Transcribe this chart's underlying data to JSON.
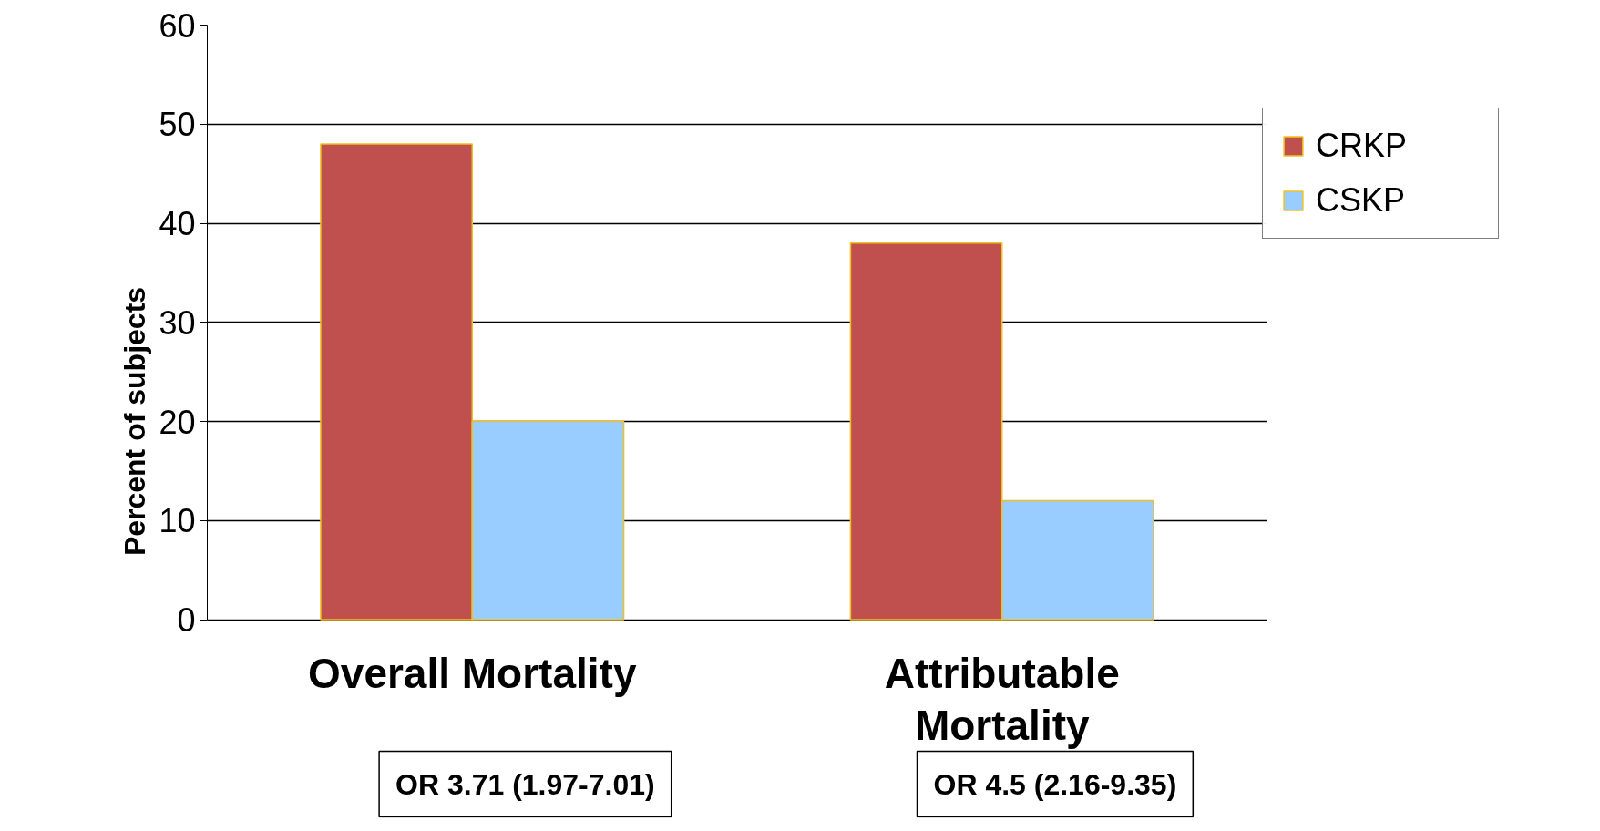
{
  "chart_data": {
    "type": "bar",
    "ylabel": "Percent of subjects",
    "categories": [
      "Overall Mortality",
      "Attributable Mortality"
    ],
    "series": [
      {
        "name": "CRKP",
        "color": "#c0504d",
        "values": [
          48,
          38
        ]
      },
      {
        "name": "CSKP",
        "color": "#99ccff",
        "values": [
          20,
          12
        ]
      }
    ],
    "ylim": [
      0,
      60
    ],
    "yticks": [
      0,
      10,
      20,
      30,
      40,
      50,
      60
    ],
    "grid": "y",
    "legend": "right",
    "annotations": [
      "OR 3.71 (1.97-7.01)",
      "OR 4.5 (2.16-9.35)"
    ]
  }
}
